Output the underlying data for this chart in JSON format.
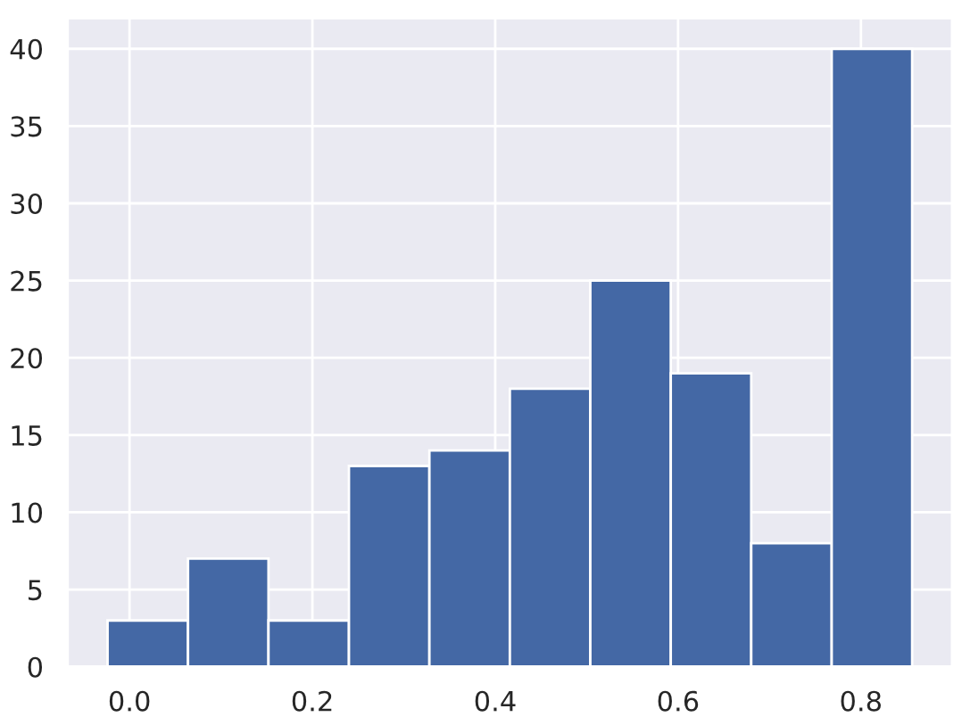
{
  "chart_data": {
    "type": "histogram",
    "bins": [
      -0.024,
      0.064,
      0.152,
      0.24,
      0.328,
      0.416,
      0.504,
      0.592,
      0.68,
      0.768,
      0.856
    ],
    "values": [
      3,
      7,
      3,
      13,
      14,
      18,
      25,
      19,
      8,
      40
    ],
    "color": "#4468a5",
    "xlim": [
      -0.068,
      0.9
    ],
    "ylim": [
      0,
      42
    ],
    "xticks": [
      {
        "value": 0,
        "label": "0.0"
      },
      0.2,
      0.4,
      0.6,
      0.8
    ],
    "yticks": [
      0,
      5,
      10,
      15,
      20,
      25,
      30,
      35,
      40
    ],
    "grid": true
  }
}
